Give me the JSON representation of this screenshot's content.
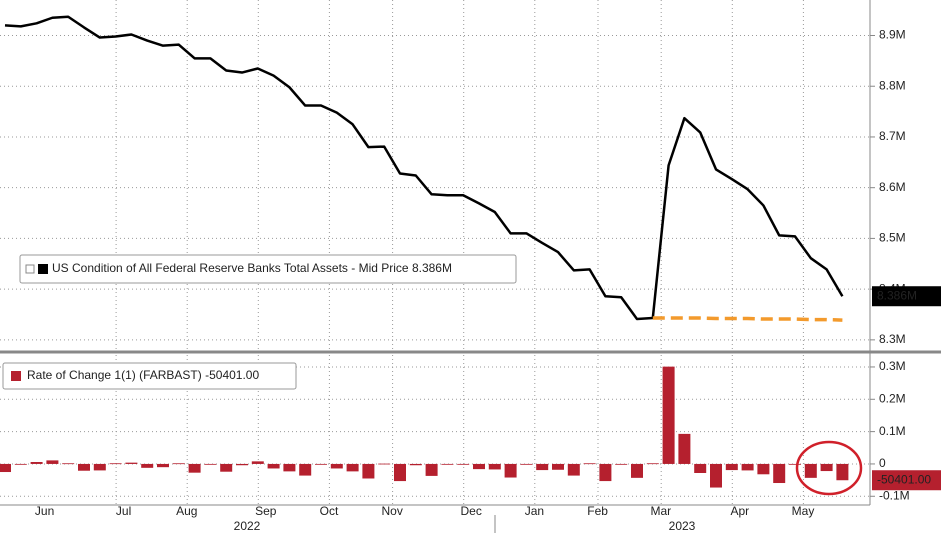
{
  "chart_data": [
    {
      "type": "line",
      "series": [
        {
          "name": "US Condition of All Federal Reserve Banks Total Assets - Mid Price",
          "color": "#000000",
          "values": [
            8.92,
            8.918,
            8.924,
            8.935,
            8.937,
            8.916,
            8.896,
            8.898,
            8.902,
            8.89,
            8.88,
            8.882,
            8.855,
            8.855,
            8.831,
            8.827,
            8.835,
            8.821,
            8.798,
            8.762,
            8.762,
            8.748,
            8.725,
            8.68,
            8.681,
            8.628,
            8.624,
            8.587,
            8.585,
            8.585,
            8.569,
            8.552,
            8.51,
            8.51,
            8.491,
            8.473,
            8.437,
            8.439,
            8.386,
            8.384,
            8.341,
            8.343,
            8.644,
            8.737,
            8.709,
            8.636,
            8.617,
            8.597,
            8.565,
            8.506,
            8.504,
            8.461,
            8.439,
            8.386
          ]
        }
      ],
      "last_label": {
        "value": 8.386,
        "label": "8.386M"
      },
      "reference_line": {
        "color": "#f39a2c",
        "values": [
          null,
          null,
          null,
          null,
          null,
          null,
          null,
          null,
          null,
          null,
          null,
          null,
          null,
          null,
          null,
          null,
          null,
          null,
          null,
          null,
          null,
          null,
          null,
          null,
          null,
          null,
          null,
          null,
          null,
          null,
          null,
          null,
          null,
          null,
          null,
          null,
          null,
          null,
          null,
          null,
          null,
          8.343,
          8.343,
          8.343,
          8.343,
          8.342,
          8.342,
          8.342,
          8.341,
          8.341,
          8.341,
          8.34,
          8.34,
          8.339
        ]
      },
      "ylim": [
        8.28,
        8.97
      ],
      "yticks": [
        {
          "value": 8.3,
          "label": "8.3M"
        },
        {
          "value": 8.4,
          "label": "8.4M"
        },
        {
          "value": 8.5,
          "label": "8.5M"
        },
        {
          "value": 8.6,
          "label": "8.6M"
        },
        {
          "value": 8.7,
          "label": "8.7M"
        },
        {
          "value": 8.8,
          "label": "8.8M"
        },
        {
          "value": 8.9,
          "label": "8.9M"
        }
      ],
      "grid": true
    },
    {
      "type": "bar",
      "categories": [
        null,
        null,
        "Jun",
        null,
        null,
        null,
        null,
        "Jul",
        null,
        null,
        null,
        "Aug",
        null,
        null,
        null,
        null,
        "Sep",
        null,
        null,
        null,
        "Oct",
        null,
        null,
        null,
        "Nov",
        null,
        null,
        null,
        null,
        "Dec",
        null,
        null,
        null,
        "Jan",
        null,
        null,
        null,
        "Feb",
        null,
        null,
        null,
        "Mar",
        null,
        null,
        null,
        null,
        "Apr",
        null,
        null,
        null,
        "May",
        null,
        null,
        null
      ],
      "year_labels": [
        "2022",
        "2023"
      ],
      "series": [
        {
          "name": "Rate of Change 1(1) (FARBAST)",
          "color": "#b5202e",
          "values": [
            -0.025,
            -0.002,
            0.006,
            0.011,
            0.002,
            -0.021,
            -0.02,
            0.002,
            0.004,
            -0.012,
            -0.01,
            0.002,
            -0.027,
            0.0,
            -0.024,
            -0.004,
            0.008,
            -0.014,
            -0.023,
            -0.036,
            0.0,
            -0.014,
            -0.023,
            -0.045,
            0.001,
            -0.053,
            -0.004,
            -0.037,
            -0.002,
            0.0,
            -0.016,
            -0.017,
            -0.042,
            0.0,
            -0.019,
            -0.018,
            -0.036,
            0.002,
            -0.053,
            -0.002,
            -0.043,
            0.002,
            0.301,
            0.093,
            -0.028,
            -0.073,
            -0.019,
            -0.02,
            -0.032,
            -0.059,
            -0.002,
            -0.043,
            -0.022,
            -0.050401
          ]
        }
      ],
      "last_label": {
        "value": -0.050401,
        "label": "-50401.00"
      },
      "ylim": [
        -0.127,
        0.337
      ],
      "yticks": [
        {
          "value": -0.1,
          "label": "-0.1M"
        },
        0,
        {
          "value": 0.1,
          "label": "0.1M"
        },
        {
          "value": 0.2,
          "label": "0.2M"
        },
        {
          "value": 0.3,
          "label": "0.3M"
        }
      ],
      "grid": true
    }
  ]
}
